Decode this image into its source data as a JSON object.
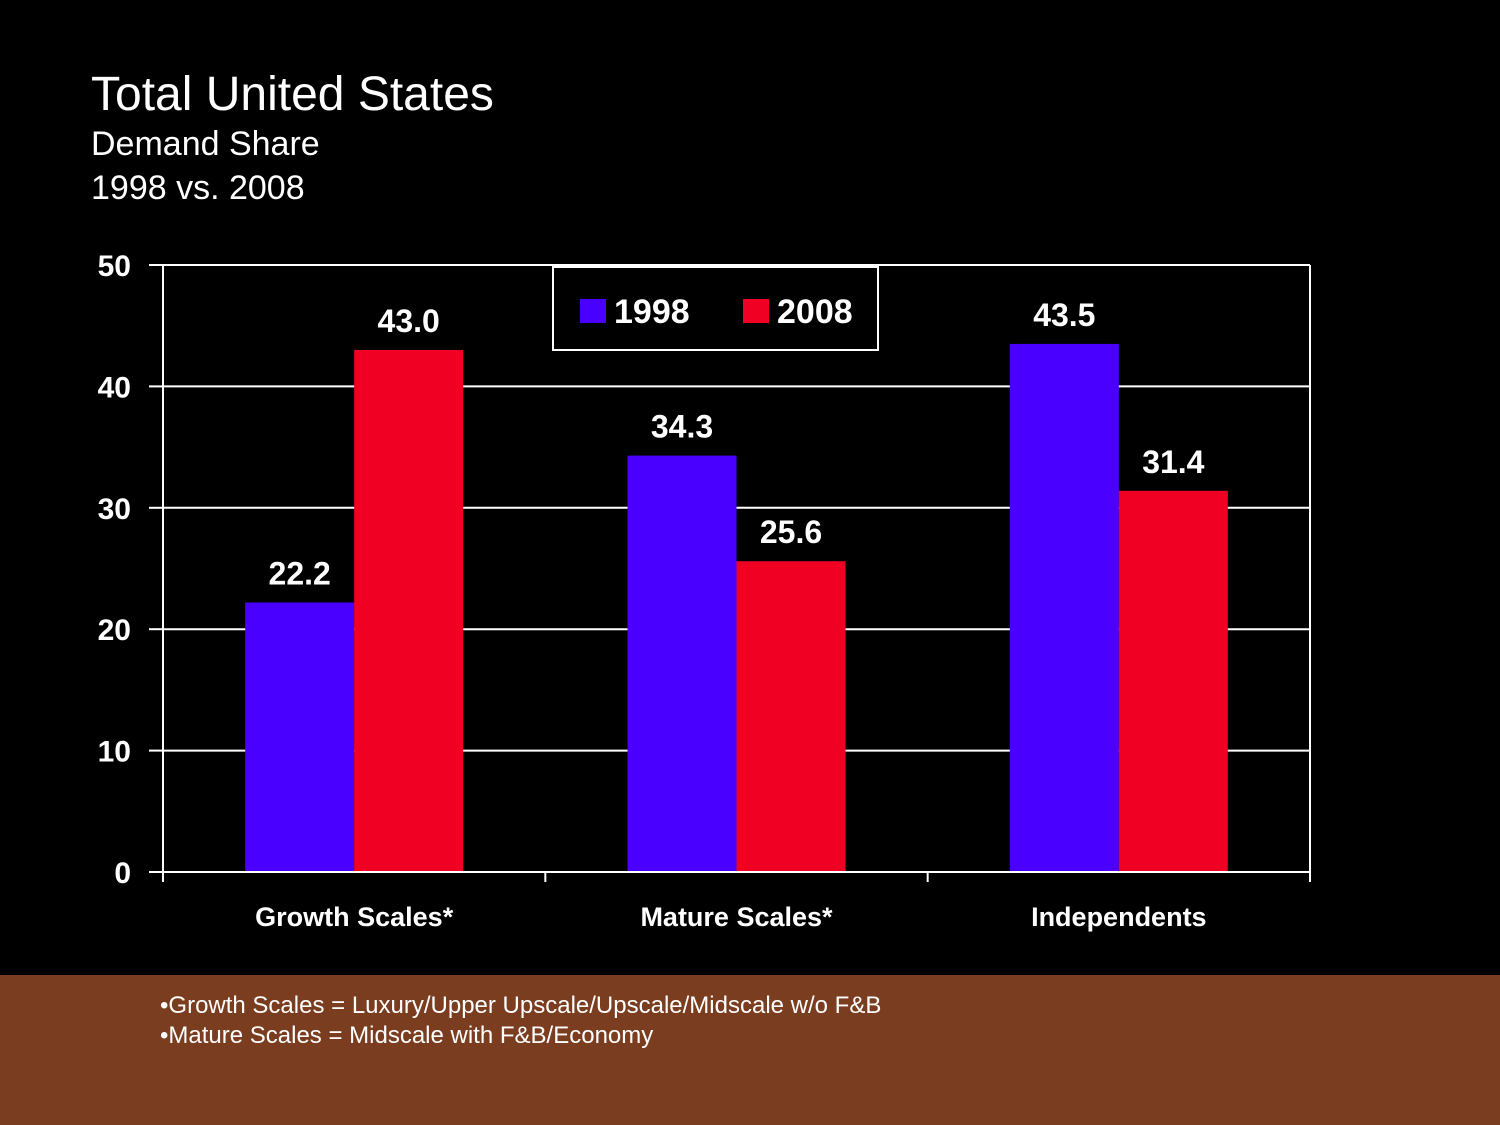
{
  "slide": {
    "title": "Total United States",
    "subtitle_line1": "Demand Share",
    "subtitle_line2": "1998 vs. 2008"
  },
  "colors": {
    "background": "#000000",
    "series_1998": "#4a00ff",
    "series_2008": "#f00023",
    "footer_band": "#7a3d20",
    "text": "#ffffff"
  },
  "chart_data": {
    "type": "bar",
    "categories": [
      "Growth Scales*",
      "Mature Scales*",
      "Independents"
    ],
    "series": [
      {
        "name": "1998",
        "values": [
          22.2,
          34.3,
          43.5
        ],
        "labels": [
          "22.2",
          "34.3",
          "43.5"
        ]
      },
      {
        "name": "2008",
        "values": [
          43.0,
          25.6,
          31.4
        ],
        "labels": [
          "43.0",
          "25.6",
          "31.4"
        ]
      }
    ],
    "ylim": [
      0,
      50
    ],
    "yticks": [
      0,
      10,
      20,
      30,
      40,
      50
    ],
    "grid": true,
    "legend": "top-center"
  },
  "footer": {
    "notes": [
      "•Growth Scales = Luxury/Upper Upscale/Upscale/Midscale w/o F&B",
      "•Mature Scales = Midscale with F&B/Economy"
    ]
  }
}
